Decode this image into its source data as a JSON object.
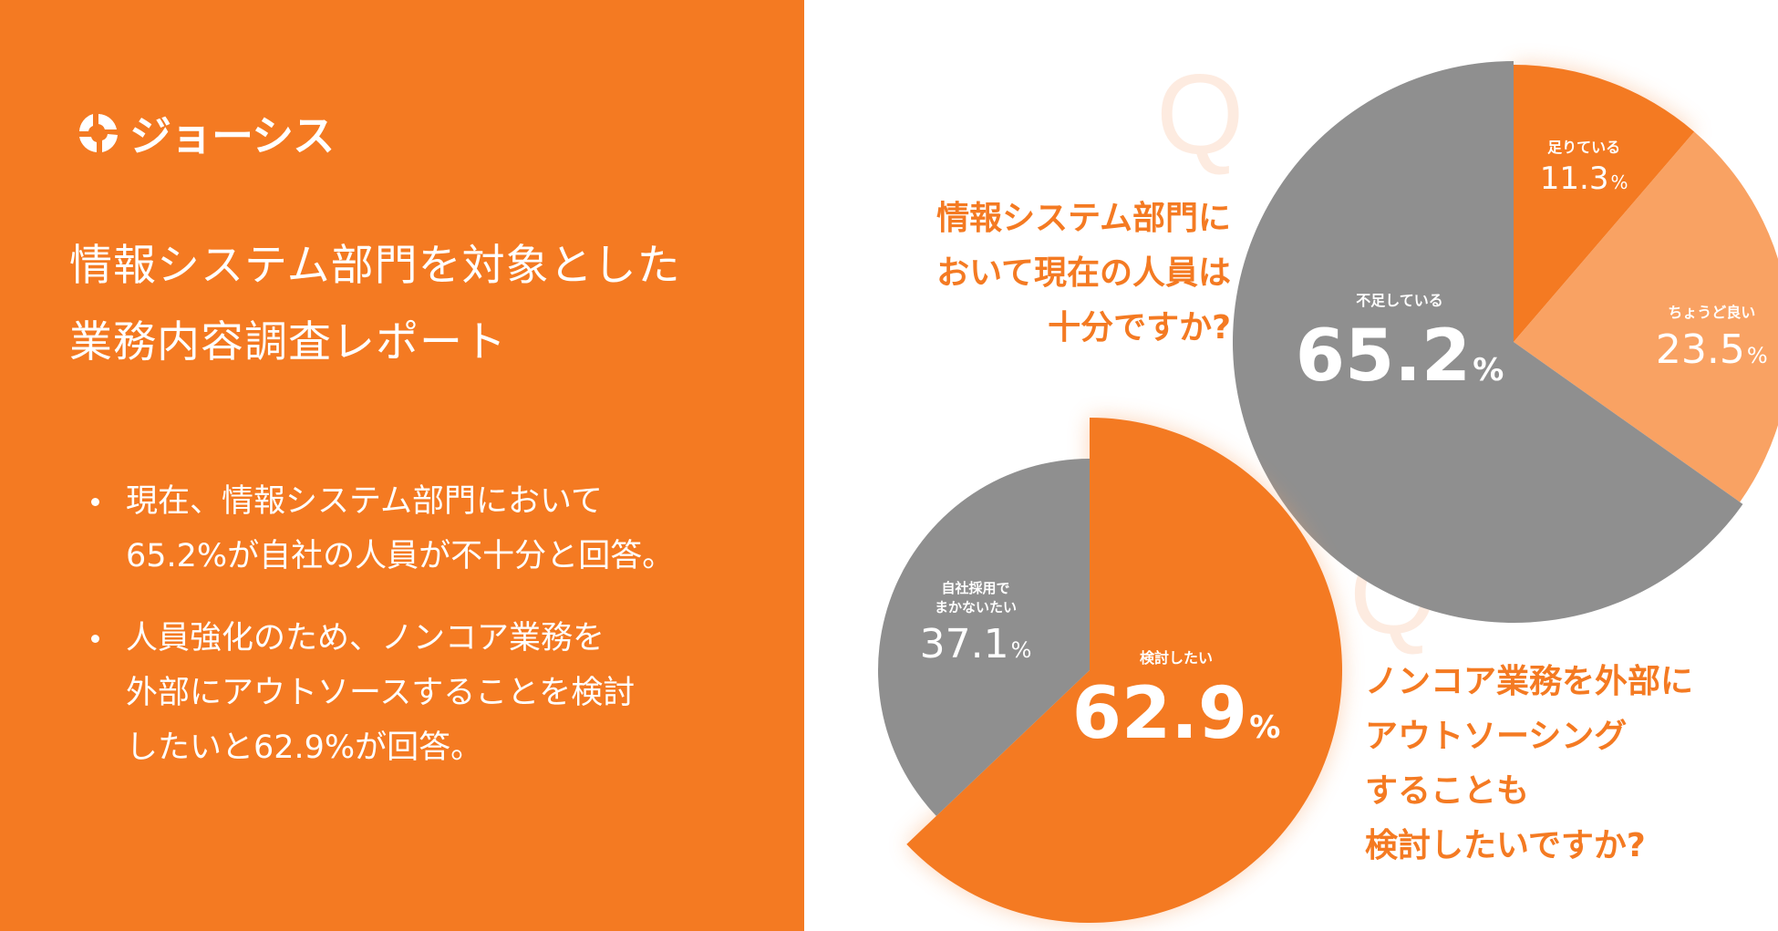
{
  "brand": {
    "name": "ジョーシス"
  },
  "report": {
    "title_lines": [
      "情報システム部門を対象とした",
      "業務内容調査レポート"
    ]
  },
  "bullets": [
    {
      "lines": [
        "現在、情報システム部門において",
        "65.2%が自社の人員が不十分と回答。"
      ]
    },
    {
      "lines": [
        "人員強化のため、ノンコア業務を",
        "外部にアウトソースすることを検討",
        "したいと62.9%が回答。"
      ]
    }
  ],
  "q_letter": "Q",
  "questions": [
    {
      "lines": [
        "情報システム部門に",
        "おいて現在の人員は",
        "十分ですか?"
      ]
    },
    {
      "lines": [
        "ノンコア業務を外部に",
        "アウトソーシング",
        "することも",
        "検討したいですか?"
      ]
    }
  ],
  "colors": {
    "orange": "#f47a22",
    "light_orange": "#f9a263",
    "gray": "#8f8f8f",
    "white": "#ffffff",
    "q_tint": "#fdebe0"
  },
  "chart_data": [
    {
      "type": "pie",
      "unit": "%",
      "slices": [
        {
          "label": "足りている",
          "value": 11.3,
          "color": "#f47a22"
        },
        {
          "label": "ちょうど良い",
          "value": 23.5,
          "color": "#f9a263"
        },
        {
          "label": "不足している",
          "value": 65.2,
          "color": "#8f8f8f"
        }
      ]
    },
    {
      "type": "pie",
      "unit": "%",
      "slices": [
        {
          "label": "検討したい",
          "value": 62.9,
          "color": "#f47a22"
        },
        {
          "label": "自社採用で\nまかないたい",
          "value": 37.1,
          "color": "#8f8f8f"
        }
      ]
    }
  ]
}
